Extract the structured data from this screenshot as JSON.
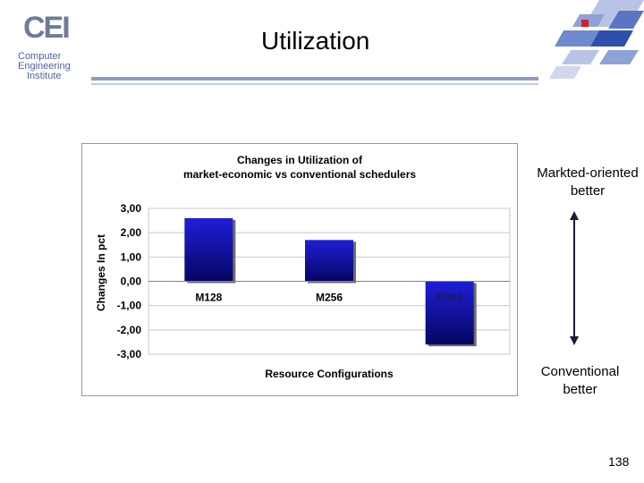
{
  "page": {
    "title": "Utilization",
    "page_number": "138"
  },
  "logo": {
    "mark": "CEI",
    "lines": [
      "Computer",
      "Engineering",
      "Institute"
    ]
  },
  "notes": {
    "top": [
      "Markted-oriented",
      "better"
    ],
    "bottom": [
      "Conventional",
      "better"
    ]
  },
  "colors": {
    "bar_top": "#1f1fd6",
    "bar_bottom": "#050563",
    "accent": "#8e9bc6"
  },
  "chart_data": {
    "type": "bar",
    "title": [
      "Changes in Utilization of",
      "market-economic vs conventional schedulers"
    ],
    "xlabel": "Resource Configurations",
    "ylabel": "Changes In pct",
    "categories": [
      "M128",
      "M256",
      "M384"
    ],
    "values": [
      2.6,
      1.7,
      -2.6
    ],
    "ylim": [
      -3,
      3
    ],
    "yticks": [
      "3,00",
      "2,00",
      "1,00",
      "0,00",
      "-1,00",
      "-2,00",
      "-3,00"
    ],
    "grid": true,
    "legend": "none"
  }
}
